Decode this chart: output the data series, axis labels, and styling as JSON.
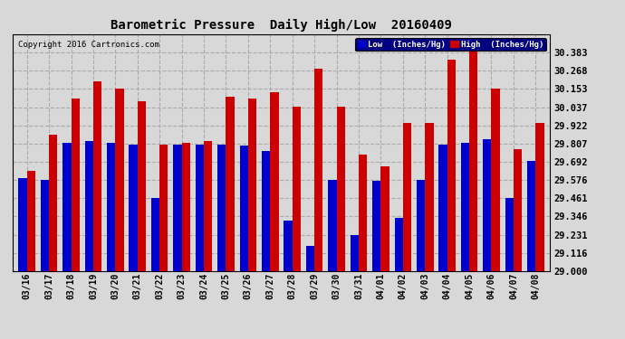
{
  "title": "Barometric Pressure  Daily High/Low  20160409",
  "copyright": "Copyright 2016 Cartronics.com",
  "legend_low": "Low  (Inches/Hg)",
  "legend_high": "High  (Inches/Hg)",
  "categories": [
    "03/16",
    "03/17",
    "03/18",
    "03/19",
    "03/20",
    "03/21",
    "03/22",
    "03/23",
    "03/24",
    "03/25",
    "03/26",
    "03/27",
    "03/28",
    "03/29",
    "03/30",
    "03/31",
    "04/01",
    "04/02",
    "04/03",
    "04/04",
    "04/05",
    "04/06",
    "04/07",
    "04/08"
  ],
  "low_values": [
    29.59,
    29.575,
    29.81,
    29.82,
    29.81,
    29.8,
    29.465,
    29.8,
    29.8,
    29.8,
    29.795,
    29.76,
    29.32,
    29.16,
    29.58,
    29.23,
    29.57,
    29.335,
    29.575,
    29.8,
    29.81,
    29.835,
    29.465,
    29.7
  ],
  "high_values": [
    29.635,
    29.865,
    30.09,
    30.2,
    30.155,
    30.075,
    29.8,
    29.81,
    29.82,
    30.1,
    30.09,
    30.13,
    30.04,
    30.28,
    30.04,
    29.735,
    29.66,
    29.935,
    29.935,
    30.335,
    30.445,
    30.155,
    29.77,
    29.935
  ],
  "ymin": 29.0,
  "ymax": 30.5,
  "yticks": [
    29.0,
    29.116,
    29.231,
    29.346,
    29.461,
    29.576,
    29.692,
    29.807,
    29.922,
    30.037,
    30.153,
    30.268,
    30.383
  ],
  "low_color": "#0000cc",
  "high_color": "#cc0000",
  "bg_color": "#d8d8d8",
  "grid_color": "#aaaaaa",
  "bar_width": 0.38
}
